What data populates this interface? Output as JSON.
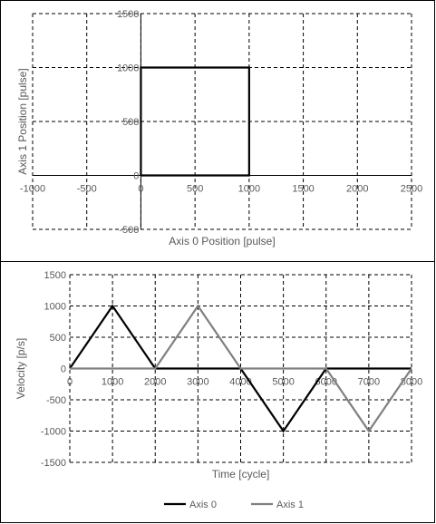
{
  "chart_data": [
    {
      "type": "scatter",
      "xlabel": "Axis 0 Position [pulse]",
      "ylabel": "Axis 1 Position [pulse]",
      "xlim": [
        -1000,
        2500
      ],
      "ylim": [
        -500,
        1500
      ],
      "xticks": [
        -1000,
        -500,
        0,
        500,
        1000,
        1500,
        2000,
        2500
      ],
      "yticks": [
        -500,
        0,
        500,
        1000,
        1500
      ],
      "grid": true,
      "series": [
        {
          "color": "#000000",
          "x": [
            0,
            1000,
            1000,
            0,
            0
          ],
          "y": [
            0,
            0,
            1000,
            1000,
            0
          ]
        }
      ]
    },
    {
      "type": "line",
      "xlabel": "Time [cycle]",
      "ylabel": "Velocity [p/s]",
      "xlim": [
        0,
        8000
      ],
      "ylim": [
        -1500,
        1500
      ],
      "xticks": [
        0,
        1000,
        2000,
        3000,
        4000,
        5000,
        6000,
        7000,
        8000
      ],
      "yticks": [
        -1500,
        -1000,
        -500,
        0,
        500,
        1000,
        1500
      ],
      "grid": true,
      "legend": "bottom",
      "series": [
        {
          "name": "Axis 0",
          "color": "#000000",
          "x": [
            0,
            1000,
            2000,
            4000,
            5000,
            6000,
            8000
          ],
          "y": [
            0,
            1000,
            0,
            0,
            -1000,
            0,
            0
          ]
        },
        {
          "name": "Axis 1",
          "color": "#808080",
          "x": [
            0,
            2000,
            3000,
            4000,
            6000,
            7000,
            8000
          ],
          "y": [
            0,
            0,
            1000,
            0,
            0,
            -1000,
            0
          ]
        }
      ]
    }
  ]
}
